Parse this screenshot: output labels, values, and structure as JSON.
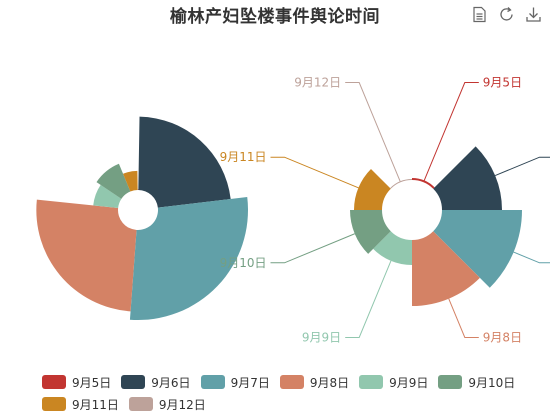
{
  "chart_data": {
    "type": "pie",
    "subtype": "nightingale-rose",
    "title": "榆林产妇坠楼事件舆论时间",
    "categories": [
      "9月5日",
      "9月6日",
      "9月7日",
      "9月8日",
      "9月9日",
      "9月10日",
      "9月11日",
      "9月12日"
    ],
    "colors": [
      "#c23531",
      "#2f4554",
      "#61a0a8",
      "#d48265",
      "#91c7ae",
      "#749f83",
      "#ca8622",
      "#bda29a"
    ],
    "series": [
      {
        "roseType": "radius",
        "values": [
          1,
          88,
          108,
          98,
          30,
          36,
          23,
          1
        ]
      },
      {
        "roseType": "area",
        "values": [
          2,
          60,
          80,
          66,
          25,
          32,
          28,
          1
        ]
      }
    ],
    "legend_position": "bottom"
  },
  "toolbox": {
    "items": [
      {
        "icon": "data-view-icon"
      },
      {
        "icon": "restore-icon"
      },
      {
        "icon": "save-image-icon"
      }
    ]
  }
}
